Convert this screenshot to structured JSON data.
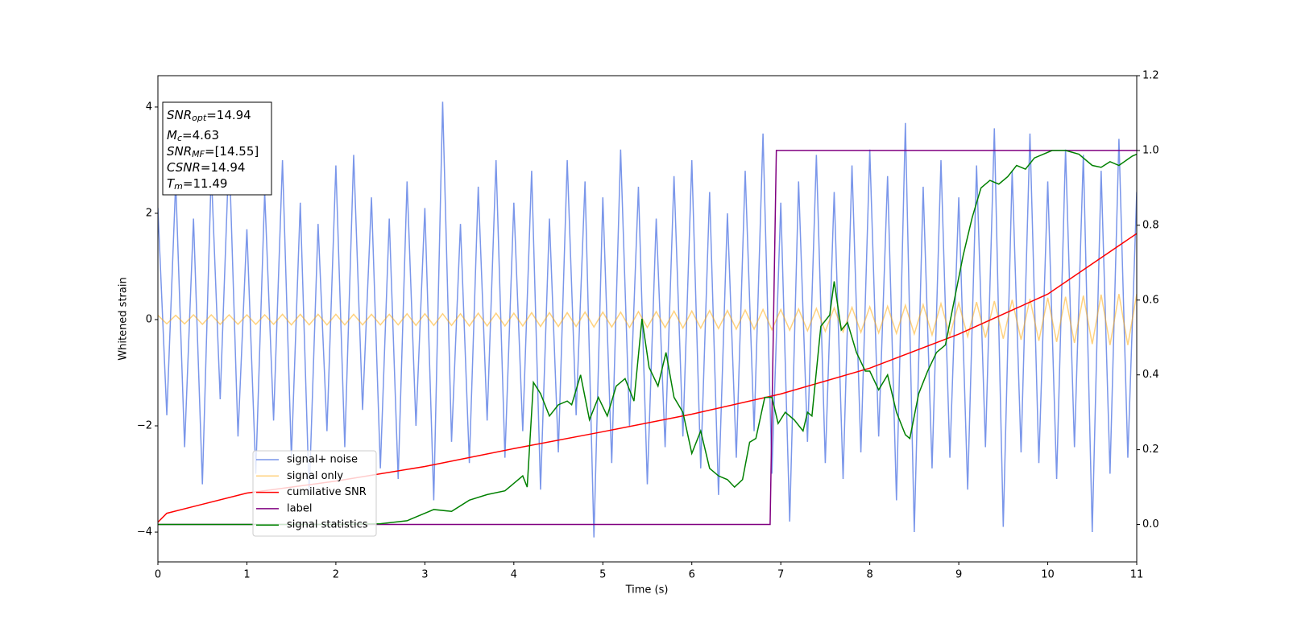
{
  "chart_data": {
    "type": "line",
    "xlabel": "Time (s)",
    "ylabel": "Whitened strain",
    "xlim": [
      0,
      11
    ],
    "xticks": [
      0,
      1,
      2,
      3,
      4,
      5,
      6,
      7,
      8,
      9,
      10,
      11
    ],
    "ylim": [
      -4.56,
      4.59
    ],
    "yticks": [
      -4,
      -2,
      0,
      2,
      4
    ],
    "y2lim": [
      -0.1,
      1.2
    ],
    "y2ticks": [
      {
        "value": 0,
        "label": "0.0"
      },
      {
        "value": 0.2,
        "label": "0.2"
      },
      {
        "value": 0.4,
        "label": "0.4"
      },
      {
        "value": 0.6,
        "label": "0.6"
      },
      {
        "value": 0.8,
        "label": "0.8"
      },
      {
        "value": 1,
        "label": "1.0"
      },
      {
        "value": 1.2,
        "label": "1.2"
      }
    ],
    "legend": "lower left",
    "annotations": [
      {
        "var": "SNR",
        "sub": "opt",
        "text": "=14.94"
      },
      {
        "var": "M",
        "sub": "c",
        "text": "=4.63"
      },
      {
        "var": "SNR",
        "sub": "MF",
        "text": "=[14.55]"
      },
      {
        "var": "CSNR",
        "text": "=14.94"
      },
      {
        "var": "T",
        "sub": "m",
        "text": "=11.49"
      }
    ],
    "x": [
      0,
      0.1,
      0.2,
      0.3,
      0.4,
      0.5,
      0.6,
      0.7,
      0.8,
      0.9,
      1,
      1.1,
      1.2,
      1.3,
      1.4,
      1.5,
      1.6,
      1.7,
      1.8,
      1.9,
      2,
      2.1,
      2.2,
      2.3,
      2.4,
      2.5,
      2.6,
      2.7,
      2.8,
      2.9,
      3,
      3.1,
      3.2,
      3.3,
      3.4,
      3.5,
      3.6,
      3.7,
      3.8,
      3.9,
      4,
      4.1,
      4.2,
      4.3,
      4.4,
      4.5,
      4.6,
      4.7,
      4.8,
      4.9,
      5,
      5.1,
      5.2,
      5.3,
      5.4,
      5.5,
      5.6,
      5.7,
      5.8,
      5.9,
      6,
      6.1,
      6.2,
      6.3,
      6.4,
      6.5,
      6.6,
      6.7,
      6.8,
      6.9,
      7,
      7.1,
      7.2,
      7.3,
      7.4,
      7.5,
      7.6,
      7.7,
      7.8,
      7.9,
      8,
      8.1,
      8.2,
      8.3,
      8.4,
      8.5,
      8.6,
      8.7,
      8.8,
      8.9,
      9,
      9.1,
      9.2,
      9.3,
      9.4,
      9.5,
      9.6,
      9.7,
      9.8,
      9.9,
      10,
      10.1,
      10.2,
      10.3,
      10.4,
      10.5,
      10.6,
      10.7,
      10.8,
      10.9,
      11
    ],
    "series": [
      {
        "name": "signal+ noise",
        "color": "#4169e1",
        "opacity": 0.7,
        "values": [
          2.1,
          -1.8,
          2.6,
          -2.4,
          1.9,
          -3.1,
          2.8,
          -1.5,
          3.2,
          -2.2,
          1.7,
          -2.9,
          2.4,
          -1.9,
          3.0,
          -2.6,
          2.2,
          -3.3,
          1.8,
          -2.1,
          2.9,
          -2.4,
          3.1,
          -1.7,
          2.3,
          -2.8,
          1.9,
          -3.0,
          2.6,
          -2.0,
          2.1,
          -3.4,
          4.1,
          -2.3,
          1.8,
          -2.7,
          2.5,
          -1.9,
          3.0,
          -2.6,
          2.2,
          -2.1,
          2.8,
          -3.2,
          1.9,
          -2.5,
          3.0,
          -1.8,
          2.6,
          -4.1,
          2.3,
          -2.7,
          3.2,
          -2.0,
          2.5,
          -3.1,
          1.9,
          -2.4,
          2.7,
          -2.2,
          3.0,
          -2.8,
          2.4,
          -3.3,
          2.0,
          -2.6,
          2.8,
          -2.1,
          3.5,
          -2.9,
          2.2,
          -3.8,
          2.6,
          -2.3,
          3.1,
          -2.7,
          2.4,
          -3.0,
          2.9,
          -2.5,
          3.2,
          -2.2,
          2.7,
          -3.4,
          3.7,
          -4.0,
          2.5,
          -2.8,
          3.0,
          -2.6,
          2.3,
          -3.2,
          2.9,
          -2.4,
          3.6,
          -3.9,
          2.8,
          -2.5,
          3.5,
          -2.7,
          2.6,
          -3.0,
          3.2,
          -2.4,
          3.1,
          -4.0,
          2.8,
          -2.9,
          3.4,
          -2.6,
          2.4
        ]
      },
      {
        "name": "signal only",
        "color": "#ffa500",
        "opacity": 0.5,
        "values": [
          0.08,
          -0.08,
          0.08,
          -0.08,
          0.09,
          -0.09,
          0.09,
          -0.09,
          0.09,
          -0.09,
          0.09,
          -0.09,
          0.09,
          -0.09,
          0.1,
          -0.1,
          0.1,
          -0.1,
          0.1,
          -0.1,
          0.1,
          -0.1,
          0.1,
          -0.1,
          0.1,
          -0.1,
          0.1,
          -0.1,
          0.11,
          -0.11,
          0.11,
          -0.11,
          0.11,
          -0.11,
          0.11,
          -0.12,
          0.12,
          -0.12,
          0.12,
          -0.12,
          0.12,
          -0.12,
          0.13,
          -0.13,
          0.13,
          -0.13,
          0.13,
          -0.13,
          0.14,
          -0.14,
          0.14,
          -0.14,
          0.14,
          -0.15,
          0.15,
          -0.15,
          0.15,
          -0.15,
          0.16,
          -0.16,
          0.16,
          -0.16,
          0.17,
          -0.17,
          0.17,
          -0.18,
          0.18,
          -0.18,
          0.19,
          -0.19,
          0.19,
          -0.2,
          0.2,
          -0.21,
          0.21,
          -0.22,
          0.22,
          -0.23,
          0.23,
          -0.24,
          0.24,
          -0.25,
          0.25,
          -0.26,
          0.27,
          -0.27,
          0.28,
          -0.29,
          0.3,
          -0.3,
          0.31,
          -0.32,
          0.33,
          -0.34,
          0.35,
          -0.36,
          0.37,
          -0.38,
          0.39,
          -0.4,
          0.41,
          -0.42,
          0.43,
          -0.44,
          0.45,
          -0.46,
          0.47,
          -0.48,
          0.48,
          -0.48,
          0.48
        ]
      },
      {
        "name": "cumilative SNR",
        "color": "#ff0000",
        "axis": "y2",
        "x": [
          0,
          0.1,
          0.5,
          1,
          2,
          3,
          4,
          5,
          6,
          7,
          8,
          9,
          10,
          11
        ],
        "values": [
          0.006,
          0.03,
          0.054,
          0.084,
          0.116,
          0.155,
          0.203,
          0.248,
          0.295,
          0.349,
          0.418,
          0.509,
          0.616,
          0.778
        ]
      },
      {
        "name": "label",
        "color": "#800080",
        "axis": "y2",
        "x": [
          0,
          6.88,
          6.95,
          11
        ],
        "values": [
          0,
          0,
          1,
          1
        ]
      },
      {
        "name": "signal statistics",
        "color": "#008000",
        "axis": "y2",
        "x": [
          0,
          1,
          2,
          2.5,
          2.8,
          3.0,
          3.1,
          3.3,
          3.5,
          3.7,
          3.9,
          4.0,
          4.1,
          4.15,
          4.22,
          4.3,
          4.4,
          4.5,
          4.6,
          4.65,
          4.75,
          4.85,
          4.95,
          5.05,
          5.15,
          5.25,
          5.35,
          5.44,
          5.52,
          5.62,
          5.71,
          5.8,
          5.9,
          6.0,
          6.1,
          6.2,
          6.3,
          6.4,
          6.48,
          6.57,
          6.65,
          6.72,
          6.82,
          6.9,
          6.97,
          7.05,
          7.15,
          7.25,
          7.3,
          7.35,
          7.45,
          7.55,
          7.6,
          7.68,
          7.75,
          7.85,
          7.95,
          8.0,
          8.1,
          8.2,
          8.3,
          8.4,
          8.45,
          8.55,
          8.65,
          8.75,
          8.85,
          8.95,
          9.05,
          9.15,
          9.25,
          9.35,
          9.45,
          9.55,
          9.65,
          9.75,
          9.85,
          9.95,
          10.05,
          10.2,
          10.35,
          10.5,
          10.6,
          10.7,
          10.8,
          10.95,
          11
        ],
        "values": [
          0,
          0,
          0,
          0.002,
          0.01,
          0.03,
          0.04,
          0.035,
          0.065,
          0.08,
          0.09,
          0.11,
          0.13,
          0.1,
          0.38,
          0.35,
          0.29,
          0.32,
          0.33,
          0.32,
          0.4,
          0.28,
          0.34,
          0.29,
          0.37,
          0.39,
          0.33,
          0.55,
          0.42,
          0.37,
          0.46,
          0.34,
          0.3,
          0.19,
          0.25,
          0.15,
          0.13,
          0.12,
          0.1,
          0.12,
          0.22,
          0.23,
          0.34,
          0.34,
          0.27,
          0.3,
          0.28,
          0.25,
          0.3,
          0.29,
          0.53,
          0.56,
          0.65,
          0.52,
          0.54,
          0.46,
          0.41,
          0.41,
          0.36,
          0.4,
          0.3,
          0.24,
          0.23,
          0.35,
          0.41,
          0.46,
          0.48,
          0.6,
          0.72,
          0.82,
          0.9,
          0.92,
          0.91,
          0.93,
          0.96,
          0.95,
          0.98,
          0.99,
          1.0,
          1.0,
          0.99,
          0.96,
          0.955,
          0.97,
          0.96,
          0.985,
          0.99
        ]
      }
    ]
  }
}
